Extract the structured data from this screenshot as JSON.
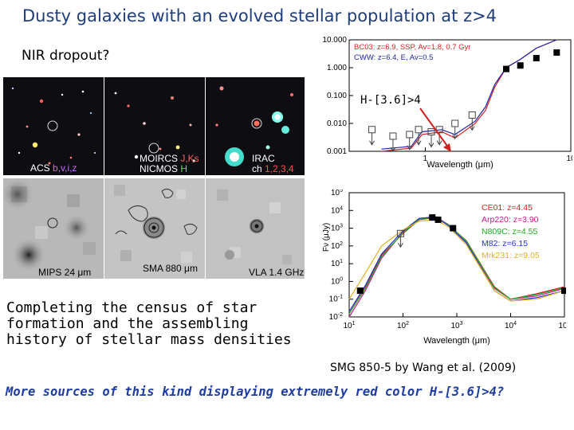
{
  "title": "Dusty galaxies with an evolved stellar population at z>4",
  "subtitle": "NIR dropout?",
  "callout": "H-[3.6]>4",
  "body_text": "Completing the census of star\nformation and the assembling\nhistory of stellar mass densities",
  "citation": "SMG 850-5 by Wang et al. (2009)",
  "footer_question": "More sources of this kind displaying extremely red color H-[3.6]>4?",
  "image_panels": {
    "acs": {
      "name": "ACS",
      "filters": "b,v,i,z"
    },
    "moircs": {
      "line1_name": "MOIRCS",
      "line1_filters": "J,Ks",
      "line2_name": "NICMOS",
      "line2_filters": "H"
    },
    "irac": {
      "line1": "IRAC",
      "line2_name": "ch",
      "line2_channels": "1,2,3,4"
    },
    "mips": {
      "label": "MIPS 24 μm"
    },
    "sma": {
      "label": "SMA 880 μm"
    },
    "vla": {
      "label": "VLA 1.4 GHz"
    }
  },
  "colors": {
    "title_blue": "#1f3d7a",
    "footer_blue": "#1f3ca0",
    "legend_red": "#d42020",
    "legend_blue": "#2222aa"
  },
  "chart_data": [
    {
      "type": "line",
      "title": "",
      "xlabel": "Wavelength (μm)",
      "ylabel": "",
      "xscale": "log",
      "yscale": "log",
      "ylim": [
        0.001,
        10
      ],
      "yticks": [
        "10.000",
        "1.000",
        "0.100",
        "0.010",
        "0.001"
      ],
      "xticks": [
        "1",
        "10"
      ],
      "legend": {
        "placement": "top-left",
        "entries": [
          "BC03: z=6.9, SSP, Av=1.8, 0.7 Gyr",
          "CWW: z=6.4, E, Av=0.5"
        ]
      },
      "series": [
        {
          "name": "BC03: z=6.9, SSP, Av=1.8, 0.7 Gyr",
          "color": "#d42020",
          "x": [
            0.5,
            0.8,
            0.95,
            1.3,
            1.6,
            2.2,
            2.6,
            3.0,
            3.6,
            4.5,
            5.8,
            8.0
          ],
          "y": [
            0.001,
            0.0013,
            0.004,
            0.005,
            0.003,
            0.01,
            0.03,
            0.2,
            1.0,
            2.0,
            5.0,
            10.0
          ]
        },
        {
          "name": "CWW: z=6.4, E, Av=0.5",
          "color": "#2222aa",
          "x": [
            0.5,
            0.8,
            0.95,
            1.3,
            1.6,
            2.2,
            2.6,
            3.0,
            3.6,
            4.5,
            5.8,
            8.0
          ],
          "y": [
            0.0012,
            0.0015,
            0.005,
            0.006,
            0.004,
            0.012,
            0.04,
            0.25,
            1.0,
            2.0,
            5.0,
            10.0
          ]
        }
      ],
      "detections": {
        "x": [
          3.6,
          4.5,
          5.8,
          8.0
        ],
        "y": [
          0.9,
          1.2,
          2.2,
          3.5
        ]
      },
      "upper_limits": {
        "x": [
          0.43,
          0.6,
          0.78,
          0.9,
          1.1,
          1.25,
          1.6,
          2.1
        ],
        "y": [
          0.006,
          0.0035,
          0.004,
          0.006,
          0.005,
          0.006,
          0.01,
          0.02
        ]
      }
    },
    {
      "type": "line",
      "title": "",
      "xlabel": "Wavelength (μm)",
      "ylabel": "Fν (μJy)",
      "xscale": "log",
      "yscale": "log",
      "xlim": [
        10,
        100000
      ],
      "ylim": [
        0.01,
        100000
      ],
      "xticks": [
        "10^1",
        "10^2",
        "10^3",
        "10^4",
        "10^5"
      ],
      "yticks": [
        "10^5",
        "10^4",
        "10^3",
        "10^2",
        "10^1",
        "10^0",
        "10^-1",
        "10^-2"
      ],
      "legend": {
        "placement": "top-right",
        "entries": [
          "CE01: z=4.45",
          "Arp220: z=3.90",
          "N809C: z=4.55",
          "M82: z=6.15",
          "Mrk231: z=9.05"
        ]
      },
      "series": [
        {
          "name": "CE01: z=4.45",
          "color": "#d42020",
          "x": [
            10,
            20,
            40,
            100,
            200,
            400,
            700,
            1500,
            5000,
            10000,
            30000,
            100000
          ],
          "y": [
            0.02,
            0.5,
            30,
            500,
            3000,
            4000,
            1500,
            200,
            0.5,
            0.1,
            0.2,
            0.5
          ]
        },
        {
          "name": "Arp220: z=3.90",
          "color": "#c02090",
          "x": [
            10,
            20,
            40,
            100,
            200,
            400,
            700,
            1500,
            5000,
            10000,
            30000,
            100000
          ],
          "y": [
            0.01,
            0.3,
            20,
            600,
            3500,
            4500,
            1600,
            180,
            0.4,
            0.1,
            0.15,
            0.4
          ]
        },
        {
          "name": "N809C: z=4.55",
          "color": "#22aa22",
          "x": [
            10,
            20,
            40,
            100,
            200,
            400,
            700,
            1500,
            5000,
            10000,
            30000,
            100000
          ],
          "y": [
            0.015,
            0.4,
            25,
            550,
            3200,
            4200,
            1550,
            190,
            0.45,
            0.1,
            0.18,
            0.45
          ]
        },
        {
          "name": "M82: z=6.15",
          "color": "#2233cc",
          "x": [
            10,
            20,
            40,
            100,
            200,
            400,
            700,
            1500,
            5000,
            10000,
            30000,
            100000
          ],
          "y": [
            0.02,
            0.6,
            35,
            700,
            3600,
            4300,
            1400,
            150,
            0.3,
            0.08,
            0.12,
            0.3
          ]
        },
        {
          "name": "Mrk231: z=9.05",
          "color": "#e0b020",
          "x": [
            10,
            20,
            40,
            100,
            200,
            400,
            700,
            1500,
            5000,
            10000,
            30000,
            100000
          ],
          "y": [
            0.1,
            3,
            100,
            800,
            2500,
            3000,
            1200,
            120,
            0.3,
            0.08,
            0.1,
            0.3
          ]
        }
      ],
      "detections": {
        "x": [
          16,
          350,
          450,
          850,
          100000
        ],
        "y": [
          0.3,
          4000,
          3000,
          1000,
          0.3
        ]
      },
      "upper_limits": {
        "x": [
          90
        ],
        "y": [
          500
        ]
      }
    }
  ]
}
